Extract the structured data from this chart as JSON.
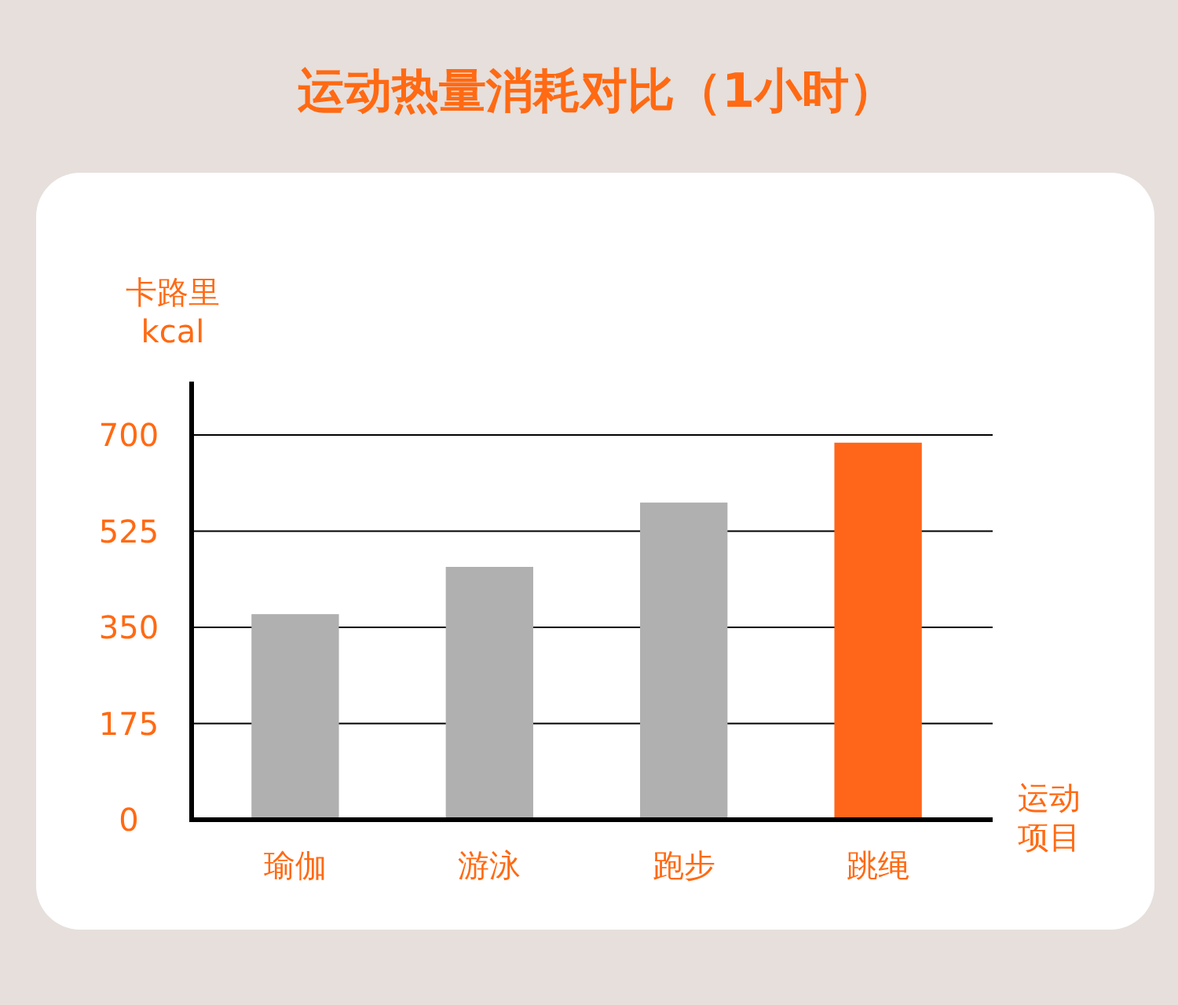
{
  "chart_data": {
    "type": "bar",
    "title": "运动热量消耗对比（1小时）",
    "ylabel": "卡路里\nkcal",
    "xlabel": "运动项目",
    "categories": [
      "瑜伽",
      "游泳",
      "跑步",
      "跳绳"
    ],
    "values": [
      374,
      460,
      577,
      686
    ],
    "colors": [
      "#b0b0b0",
      "#b0b0b0",
      "#b0b0b0",
      "#ff6619"
    ],
    "ylim": [
      0,
      700
    ],
    "yticks": [
      0,
      175,
      350,
      525,
      700
    ],
    "grid": "y"
  }
}
